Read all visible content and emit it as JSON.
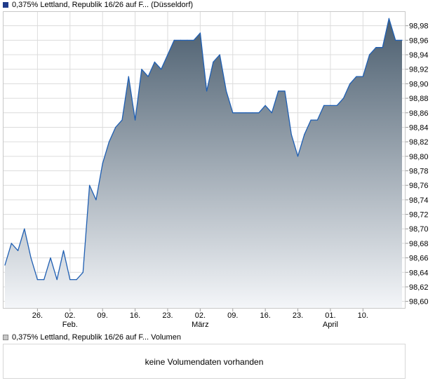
{
  "legend_price": {
    "text": "0,375% Lettland, Republik 16/26 auf F... (Düsseldorf)",
    "color": "#1f3b8a"
  },
  "legend_volume": {
    "text": "0,375% Lettland, Republik 16/26 auf F... Volumen",
    "color": "#c7c7c7"
  },
  "volume_panel": {
    "message": "keine Volumendaten vorhanden"
  },
  "chart_data": {
    "type": "area",
    "title": "",
    "xlabel": "",
    "ylabel": "",
    "ylim": [
      98.59,
      99.0
    ],
    "y_ticks": [
      "98,98",
      "98,96",
      "98,94",
      "98,92",
      "98,90",
      "98,88",
      "98,86",
      "98,84",
      "98,82",
      "98,80",
      "98,78",
      "98,76",
      "98,74",
      "98,72",
      "98,70",
      "98,68",
      "98,66",
      "98,64",
      "98,62",
      "98,60"
    ],
    "x_ticks": [
      {
        "label": "26.",
        "sub": "",
        "date": "2024-01-26"
      },
      {
        "label": "02.",
        "sub": "Feb.",
        "date": "2024-02-02"
      },
      {
        "label": "09.",
        "sub": "",
        "date": "2024-02-09"
      },
      {
        "label": "16.",
        "sub": "",
        "date": "2024-02-16"
      },
      {
        "label": "23.",
        "sub": "",
        "date": "2024-02-23"
      },
      {
        "label": "02.",
        "sub": "März",
        "date": "2024-03-01"
      },
      {
        "label": "09.",
        "sub": "",
        "date": "2024-03-08"
      },
      {
        "label": "16.",
        "sub": "",
        "date": "2024-03-15"
      },
      {
        "label": "23.",
        "sub": "",
        "date": "2024-03-22"
      },
      {
        "label": "01.",
        "sub": "April",
        "date": "2024-03-29"
      },
      {
        "label": "10.",
        "sub": "",
        "date": "2024-04-05"
      }
    ],
    "grid": true,
    "line_color": "#1f5fb3",
    "fill_top": "#4a5d6e",
    "fill_bottom": "#f4f6f9",
    "series": [
      {
        "values": [
          [
            "2024-01-19",
            98.65
          ],
          [
            "2024-01-22",
            98.68
          ],
          [
            "2024-01-23",
            98.67
          ],
          [
            "2024-01-24",
            98.7
          ],
          [
            "2024-01-25",
            98.66
          ],
          [
            "2024-01-26",
            98.63
          ],
          [
            "2024-01-29",
            98.63
          ],
          [
            "2024-01-30",
            98.66
          ],
          [
            "2024-01-31",
            98.63
          ],
          [
            "2024-02-01",
            98.67
          ],
          [
            "2024-02-02",
            98.63
          ],
          [
            "2024-02-05",
            98.63
          ],
          [
            "2024-02-06",
            98.64
          ],
          [
            "2024-02-07",
            98.76
          ],
          [
            "2024-02-08",
            98.74
          ],
          [
            "2024-02-09",
            98.79
          ],
          [
            "2024-02-12",
            98.82
          ],
          [
            "2024-02-13",
            98.84
          ],
          [
            "2024-02-14",
            98.85
          ],
          [
            "2024-02-15",
            98.91
          ],
          [
            "2024-02-16",
            98.85
          ],
          [
            "2024-02-19",
            98.92
          ],
          [
            "2024-02-20",
            98.91
          ],
          [
            "2024-02-21",
            98.93
          ],
          [
            "2024-02-22",
            98.92
          ],
          [
            "2024-02-23",
            98.94
          ],
          [
            "2024-02-26",
            98.96
          ],
          [
            "2024-02-27",
            98.96
          ],
          [
            "2024-02-28",
            98.96
          ],
          [
            "2024-02-29",
            98.96
          ],
          [
            "2024-03-01",
            98.97
          ],
          [
            "2024-03-04",
            98.89
          ],
          [
            "2024-03-05",
            98.93
          ],
          [
            "2024-03-06",
            98.94
          ],
          [
            "2024-03-07",
            98.89
          ],
          [
            "2024-03-08",
            98.86
          ],
          [
            "2024-03-11",
            98.86
          ],
          [
            "2024-03-12",
            98.86
          ],
          [
            "2024-03-13",
            98.86
          ],
          [
            "2024-03-14",
            98.86
          ],
          [
            "2024-03-15",
            98.87
          ],
          [
            "2024-03-18",
            98.86
          ],
          [
            "2024-03-19",
            98.89
          ],
          [
            "2024-03-20",
            98.89
          ],
          [
            "2024-03-21",
            98.83
          ],
          [
            "2024-03-22",
            98.8
          ],
          [
            "2024-03-25",
            98.83
          ],
          [
            "2024-03-26",
            98.85
          ],
          [
            "2024-03-27",
            98.85
          ],
          [
            "2024-03-28",
            98.87
          ],
          [
            "2024-03-29",
            98.87
          ],
          [
            "2024-04-01",
            98.87
          ],
          [
            "2024-04-02",
            98.88
          ],
          [
            "2024-04-03",
            98.9
          ],
          [
            "2024-04-04",
            98.91
          ],
          [
            "2024-04-05",
            98.91
          ],
          [
            "2024-04-08",
            98.94
          ],
          [
            "2024-04-09",
            98.95
          ],
          [
            "2024-04-10",
            98.95
          ],
          [
            "2024-04-11",
            98.99
          ],
          [
            "2024-04-12",
            98.96
          ],
          [
            "2024-04-15",
            98.96
          ]
        ]
      }
    ]
  }
}
